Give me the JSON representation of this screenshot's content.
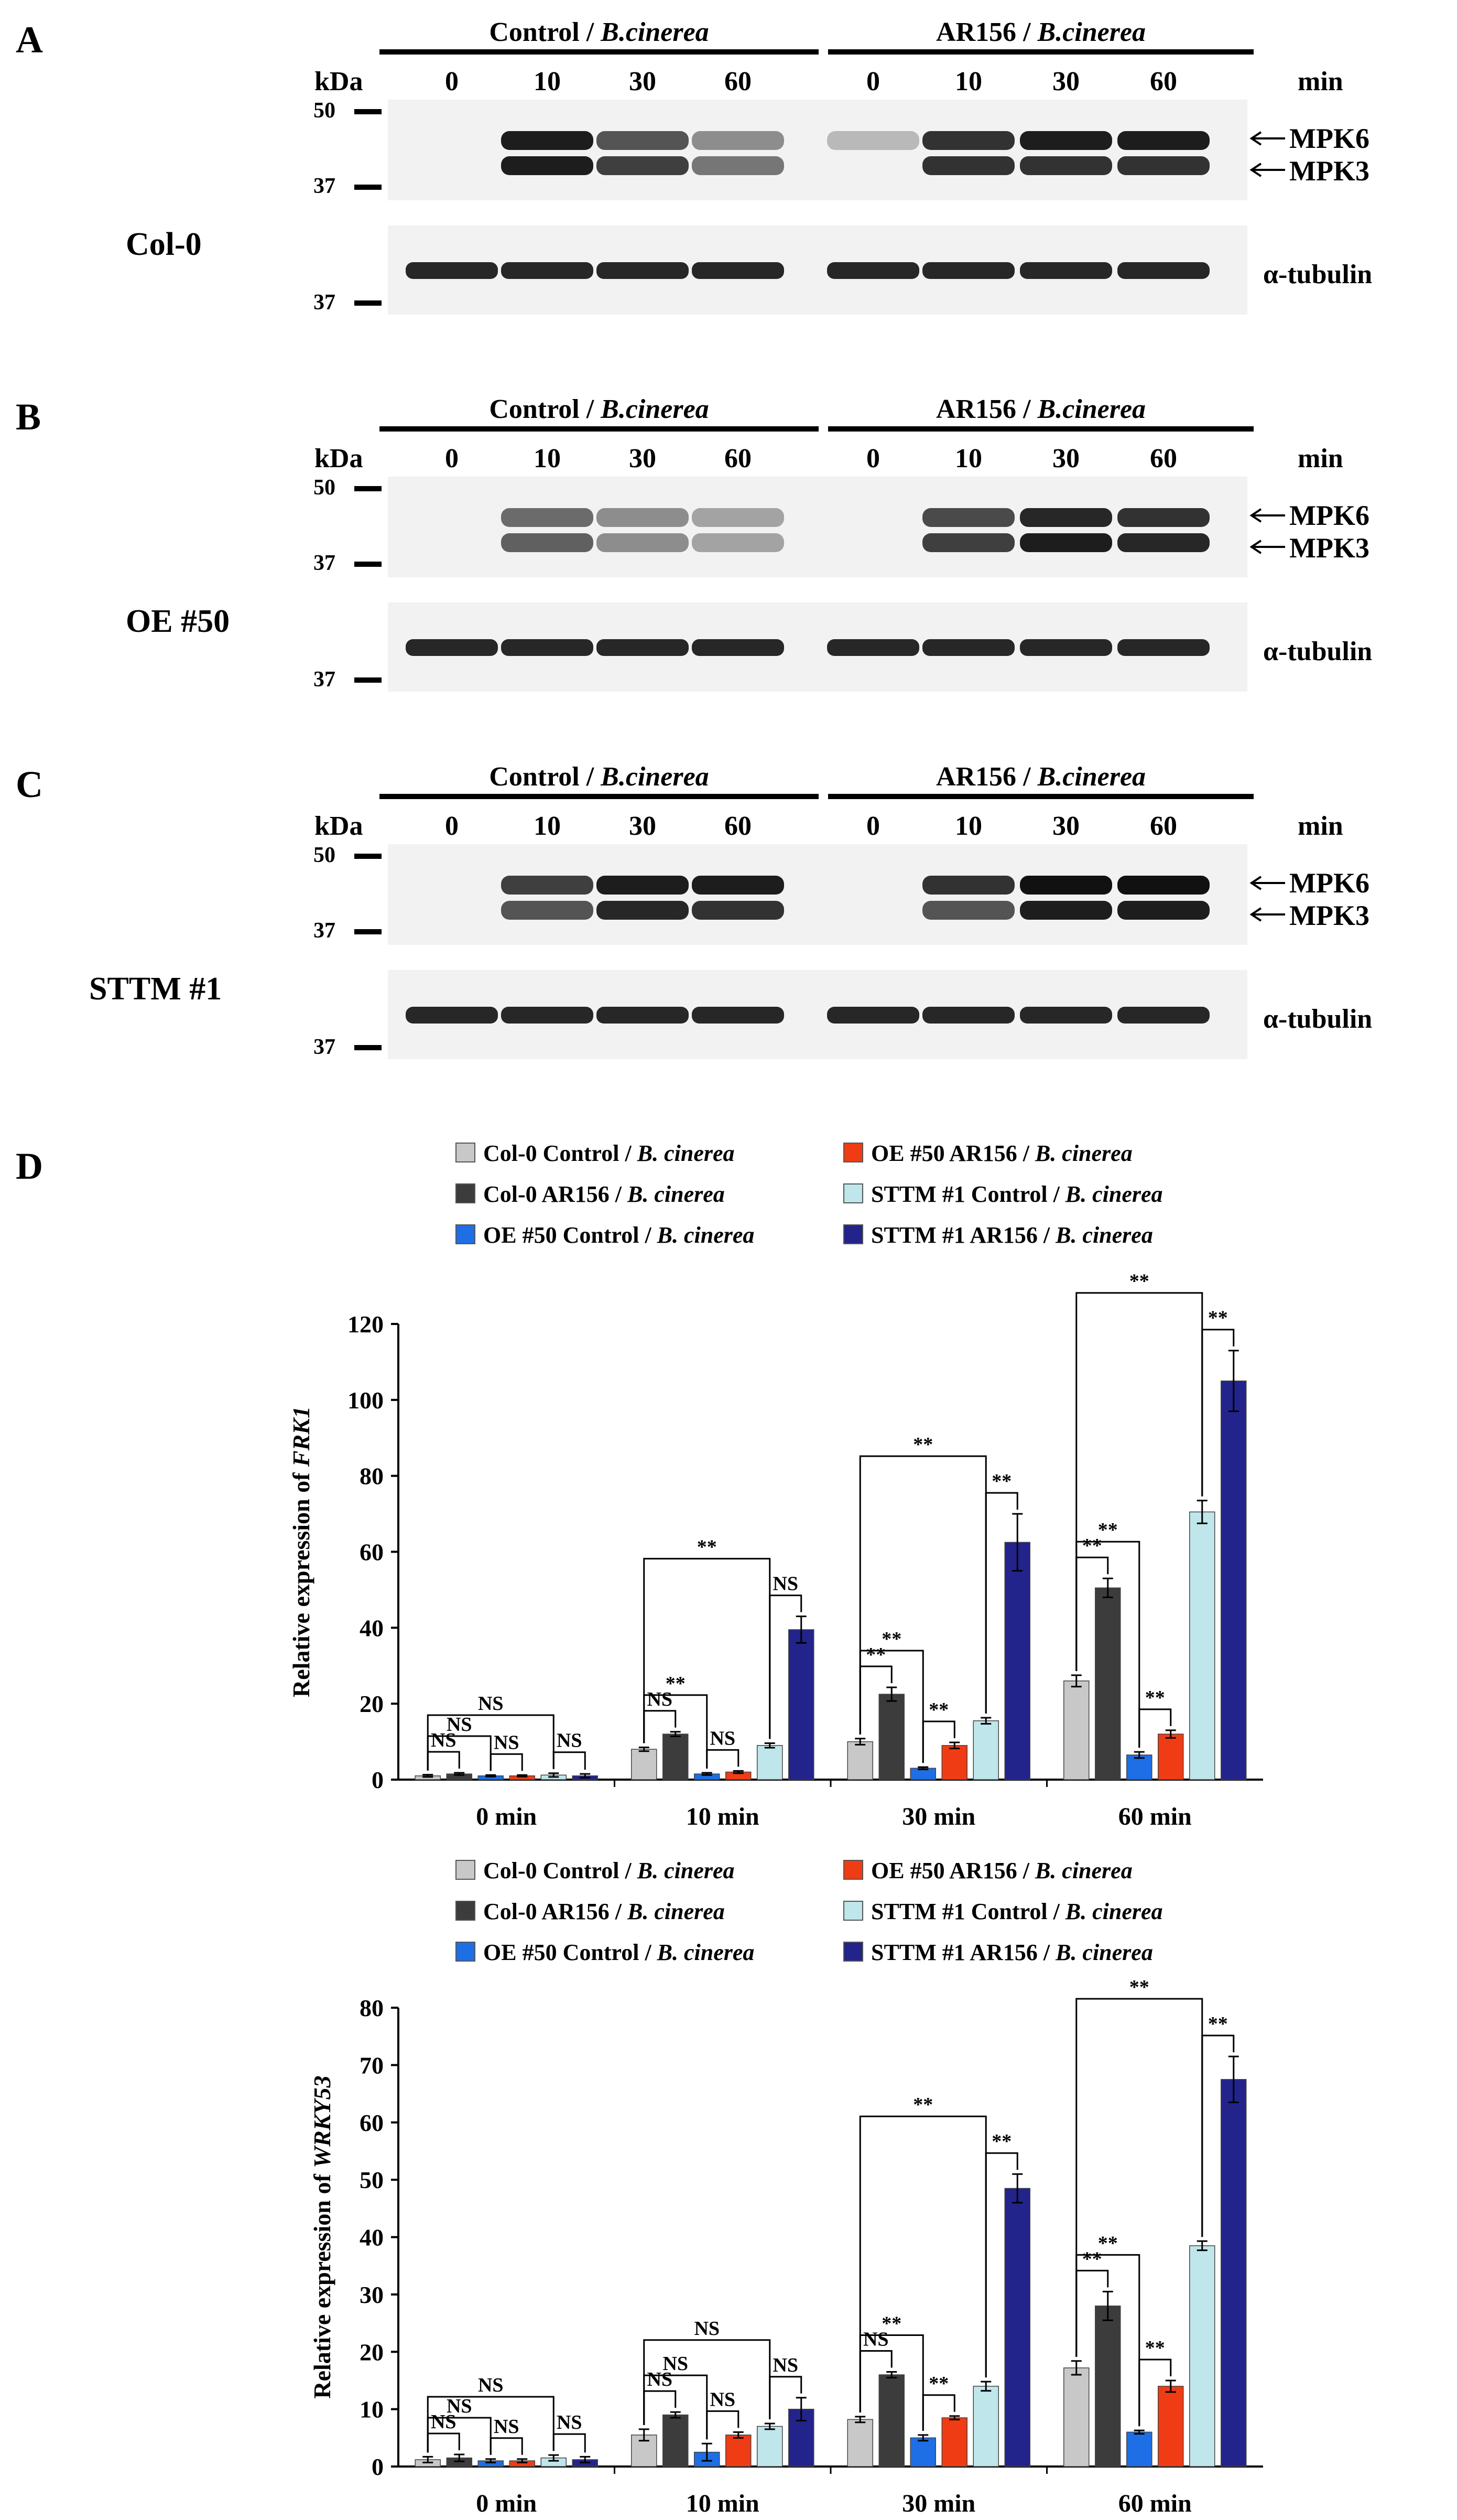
{
  "blots": [
    {
      "panel_label": "A",
      "genotype": "Col-0",
      "group_labels": [
        {
          "strain": "Control",
          "pathogen": "B.cinerea"
        },
        {
          "strain": "AR156",
          "pathogen": "B.cinerea"
        }
      ],
      "kda_label": "kDa",
      "min_label": "min",
      "timepoints": [
        "0",
        "10",
        "30",
        "60",
        "0",
        "10",
        "30",
        "60"
      ],
      "marker_50": "50",
      "marker_37": "37",
      "marker_37_tubulin": "37",
      "band_labels": {
        "mpk6": "MPK6",
        "mpk3": "MPK3",
        "tubulin": "α-tubulin"
      },
      "mpk6_intensity": [
        0.0,
        0.95,
        0.7,
        0.45,
        0.25,
        0.85,
        0.95,
        0.95
      ],
      "mpk3_intensity": [
        0.0,
        0.95,
        0.8,
        0.55,
        0.0,
        0.85,
        0.85,
        0.85
      ]
    },
    {
      "panel_label": "B",
      "genotype": "OE #50",
      "group_labels": [
        {
          "strain": "Control",
          "pathogen": "B.cinerea"
        },
        {
          "strain": "AR156",
          "pathogen": "B.cinerea"
        }
      ],
      "kda_label": "kDa",
      "min_label": "min",
      "timepoints": [
        "0",
        "10",
        "30",
        "60",
        "0",
        "10",
        "30",
        "60"
      ],
      "marker_50": "50",
      "marker_37": "37",
      "marker_37_tubulin": "37",
      "band_labels": {
        "mpk6": "MPK6",
        "mpk3": "MPK3",
        "tubulin": "α-tubulin"
      },
      "mpk6_intensity": [
        0.0,
        0.6,
        0.45,
        0.35,
        0.0,
        0.75,
        0.9,
        0.85
      ],
      "mpk3_intensity": [
        0.0,
        0.65,
        0.45,
        0.35,
        0.0,
        0.8,
        0.95,
        0.9
      ]
    },
    {
      "panel_label": "C",
      "genotype": "STTM #1",
      "group_labels": [
        {
          "strain": "Control",
          "pathogen": "B.cinerea"
        },
        {
          "strain": "AR156",
          "pathogen": "B.cinerea"
        }
      ],
      "kda_label": "kDa",
      "min_label": "min",
      "timepoints": [
        "0",
        "10",
        "30",
        "60",
        "0",
        "10",
        "30",
        "60"
      ],
      "marker_50": "50",
      "marker_37": "37",
      "marker_37_tubulin": "37",
      "band_labels": {
        "mpk6": "MPK6",
        "mpk3": "MPK3",
        "tubulin": "α-tubulin"
      },
      "mpk6_intensity": [
        0.0,
        0.8,
        0.95,
        0.95,
        0.0,
        0.85,
        1.0,
        1.0
      ],
      "mpk3_intensity": [
        0.0,
        0.7,
        0.9,
        0.85,
        0.0,
        0.7,
        0.95,
        0.95
      ]
    }
  ],
  "panel_d_label": "D",
  "legend": {
    "entries": [
      {
        "genotype": "Col-0 Control",
        "pathogen": "B. cinerea",
        "color": "#c8c8c8"
      },
      {
        "genotype": "Col-0 AR156",
        "pathogen": "B. cinerea",
        "color": "#3c3c3c"
      },
      {
        "genotype": "OE #50 Control",
        "pathogen": "B. cinerea",
        "color": "#1e6ee6"
      },
      {
        "genotype": "OE #50 AR156",
        "pathogen": "B. cinerea",
        "color": "#f03c14"
      },
      {
        "genotype": "STTM #1 Control",
        "pathogen": "B. cinerea",
        "color": "#bfe6ea"
      },
      {
        "genotype": "STTM #1 AR156",
        "pathogen": "B. cinerea",
        "color": "#23238c"
      }
    ]
  },
  "chart_data": [
    {
      "type": "bar",
      "ylabel_prefix": "Relative expression of ",
      "ylabel_gene": "FRK1",
      "categories": [
        "0 min",
        "10 min",
        "30 min",
        "60 min"
      ],
      "ylim": [
        0,
        120
      ],
      "yticks": [
        "0",
        "20",
        "40",
        "60",
        "80",
        "100",
        "120"
      ],
      "series": [
        {
          "name": "Col-0 Control / B. cinerea",
          "values": [
            1,
            8,
            10,
            26
          ],
          "errors": [
            0.3,
            0.5,
            0.8,
            1.5
          ]
        },
        {
          "name": "Col-0 AR156 / B. cinerea",
          "values": [
            1.5,
            12,
            22.5,
            50.5
          ],
          "errors": [
            0.3,
            0.6,
            1.8,
            2.5
          ]
        },
        {
          "name": "OE #50 Control / B. cinerea",
          "values": [
            1,
            1.5,
            3,
            6.5
          ],
          "errors": [
            0.2,
            0.3,
            0.3,
            0.8
          ]
        },
        {
          "name": "OE #50 AR156 / B. cinerea",
          "values": [
            1,
            2,
            9,
            12
          ],
          "errors": [
            0.2,
            0.3,
            0.8,
            1
          ]
        },
        {
          "name": "STTM #1 Control / B. cinerea",
          "values": [
            1.2,
            9,
            15.5,
            70.5
          ],
          "errors": [
            0.5,
            0.6,
            0.8,
            3
          ]
        },
        {
          "name": "STTM #1 AR156 / B. cinerea",
          "values": [
            1,
            39.5,
            62.5,
            105
          ],
          "errors": [
            0.5,
            3.5,
            7.5,
            8
          ]
        }
      ],
      "annotations": [
        "NS",
        "NS",
        "NS",
        "NS",
        "NS",
        "NS",
        "NS",
        "NS",
        "**",
        "**",
        "**",
        "**",
        "**",
        "**",
        "**",
        "**",
        "**",
        "**",
        "**",
        "**",
        "**"
      ]
    },
    {
      "type": "bar",
      "ylabel_prefix": "Relative expression of ",
      "ylabel_gene": "WRKY53",
      "categories": [
        "0 min",
        "10 min",
        "30 min",
        "60 min"
      ],
      "ylim": [
        0,
        80
      ],
      "yticks": [
        "0",
        "10",
        "20",
        "30",
        "40",
        "50",
        "60",
        "70",
        "80"
      ],
      "series": [
        {
          "name": "Col-0 Control / B. cinerea",
          "values": [
            1.2,
            5.5,
            8.2,
            17.2
          ],
          "errors": [
            0.5,
            1,
            0.5,
            1.2
          ]
        },
        {
          "name": "Col-0 AR156 / B. cinerea",
          "values": [
            1.5,
            9,
            16,
            28
          ],
          "errors": [
            0.6,
            0.5,
            0.5,
            2.5
          ]
        },
        {
          "name": "OE #50 Control / B. cinerea",
          "values": [
            1,
            2.5,
            5,
            6
          ],
          "errors": [
            0.3,
            1.5,
            0.5,
            0.3
          ]
        },
        {
          "name": "OE #50 AR156 / B. cinerea",
          "values": [
            1,
            5.5,
            8.5,
            14
          ],
          "errors": [
            0.3,
            0.5,
            0.3,
            1
          ]
        },
        {
          "name": "STTM #1 Control / B. cinerea",
          "values": [
            1.5,
            7,
            14,
            38.5
          ],
          "errors": [
            0.5,
            0.5,
            0.8,
            0.8
          ]
        },
        {
          "name": "STTM #1 AR156 / B. cinerea",
          "values": [
            1.2,
            10,
            48.5,
            67.5
          ],
          "errors": [
            0.5,
            2,
            2.5,
            4
          ]
        }
      ],
      "annotations": [
        "NS",
        "NS",
        "NS",
        "NS",
        "NS",
        "NS",
        "NS",
        "NS",
        "NS",
        "NS",
        "NS",
        "**",
        "**",
        "**",
        "**",
        "**",
        "**",
        "**",
        "**",
        "**",
        "**"
      ]
    }
  ]
}
